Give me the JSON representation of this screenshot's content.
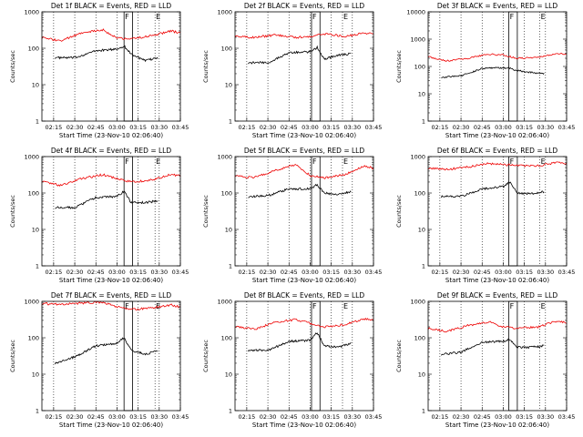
{
  "chart_data": [
    {
      "type": "line",
      "title": "Det 1f BLACK = Events, RED = LLD",
      "xlabel": "Start Time (23-Nov-10 02:06:40)",
      "ylabel": "Counts/sec",
      "xticks": [
        "02:15",
        "02:30",
        "02:45",
        "03:00",
        "03:15",
        "03:30",
        "03:45"
      ],
      "yticks": [
        "1",
        "10",
        "100",
        "1000"
      ],
      "ylim": [
        1,
        1000
      ],
      "yscale": "log",
      "xlim": [
        "02:06:40",
        "03:45"
      ],
      "markers": [
        {
          "label": "F",
          "start": "03:05",
          "end": "03:11"
        },
        {
          "label": "E",
          "start": "03:27",
          "end": "03:27"
        }
      ],
      "series": [
        {
          "name": "Events",
          "color": "#000000",
          "x": [
            "02:16",
            "02:30",
            "02:45",
            "03:00",
            "03:05",
            "03:10",
            "03:20",
            "03:29"
          ],
          "y": [
            55,
            55,
            85,
            95,
            115,
            70,
            45,
            55
          ]
        },
        {
          "name": "LLD",
          "color": "#ee0000",
          "x": [
            "02:06:40",
            "02:20",
            "02:35",
            "02:50",
            "03:00",
            "03:10",
            "03:25",
            "03:38",
            "03:45"
          ],
          "y": [
            195,
            160,
            260,
            320,
            190,
            180,
            220,
            300,
            260
          ]
        }
      ]
    },
    {
      "type": "line",
      "title": "Det 2f BLACK = Events, RED = LLD",
      "xlabel": "Start Time (23-Nov-10 02:06:40)",
      "ylabel": "Counts/sec",
      "xticks": [
        "02:15",
        "02:30",
        "02:45",
        "03:00",
        "03:15",
        "03:30",
        "03:45"
      ],
      "yticks": [
        "1",
        "10",
        "100",
        "1000"
      ],
      "ylim": [
        1,
        1000
      ],
      "yscale": "log",
      "xlim": [
        "02:06:40",
        "03:45"
      ],
      "markers": [
        {
          "label": "F",
          "start": "03:01",
          "end": "03:07"
        },
        {
          "label": "E",
          "start": "03:23",
          "end": "03:23"
        }
      ],
      "series": [
        {
          "name": "Events",
          "color": "#000000",
          "x": [
            "02:16",
            "02:30",
            "02:45",
            "03:00",
            "03:05",
            "03:10",
            "03:20",
            "03:29"
          ],
          "y": [
            40,
            40,
            75,
            80,
            105,
            50,
            65,
            70
          ]
        },
        {
          "name": "LLD",
          "color": "#ee0000",
          "x": [
            "02:06:40",
            "02:20",
            "02:35",
            "02:50",
            "03:00",
            "03:10",
            "03:25",
            "03:38",
            "03:45"
          ],
          "y": [
            210,
            200,
            230,
            200,
            210,
            250,
            210,
            260,
            260
          ]
        }
      ]
    },
    {
      "type": "line",
      "title": "Det 3f BLACK = Events, RED = LLD",
      "xlabel": "Start Time (23-Nov-10 02:06:40)",
      "ylabel": "Counts/sec",
      "xticks": [
        "02:15",
        "02:30",
        "02:45",
        "03:00",
        "03:15",
        "03:30",
        "03:45"
      ],
      "yticks": [
        "1",
        "10",
        "100",
        "1000",
        "10000"
      ],
      "ylim": [
        1,
        10000
      ],
      "yscale": "log",
      "xlim": [
        "02:06:40",
        "03:45"
      ],
      "markers": [
        {
          "label": "F",
          "start": "03:04",
          "end": "03:10"
        },
        {
          "label": "E",
          "start": "03:26",
          "end": "03:26"
        }
      ],
      "series": [
        {
          "name": "Events",
          "color": "#000000",
          "x": [
            "02:16",
            "02:30",
            "02:45",
            "03:00",
            "03:05",
            "03:10",
            "03:20",
            "03:29"
          ],
          "y": [
            40,
            45,
            85,
            90,
            85,
            70,
            60,
            55
          ]
        },
        {
          "name": "LLD",
          "color": "#ee0000",
          "x": [
            "02:06:40",
            "02:20",
            "02:35",
            "02:50",
            "03:00",
            "03:10",
            "03:25",
            "03:38",
            "03:45"
          ],
          "y": [
            230,
            160,
            200,
            280,
            260,
            200,
            210,
            300,
            290
          ]
        }
      ]
    },
    {
      "type": "line",
      "title": "Det 4f BLACK = Events, RED = LLD",
      "xlabel": "Start Time (23-Nov-10 02:06:40)",
      "ylabel": "Counts/sec",
      "xticks": [
        "02:15",
        "02:30",
        "02:45",
        "03:00",
        "03:15",
        "03:30",
        "03:45"
      ],
      "yticks": [
        "1",
        "10",
        "100",
        "1000"
      ],
      "ylim": [
        1,
        1000
      ],
      "yscale": "log",
      "xlim": [
        "02:06:40",
        "03:45"
      ],
      "markers": [
        {
          "label": "F",
          "start": "03:05",
          "end": "03:11"
        },
        {
          "label": "E",
          "start": "03:27",
          "end": "03:27"
        }
      ],
      "series": [
        {
          "name": "Events",
          "color": "#000000",
          "x": [
            "02:16",
            "02:30",
            "02:45",
            "03:00",
            "03:05",
            "03:10",
            "03:20",
            "03:29"
          ],
          "y": [
            40,
            40,
            75,
            80,
            110,
            55,
            55,
            60
          ]
        },
        {
          "name": "LLD",
          "color": "#ee0000",
          "x": [
            "02:06:40",
            "02:20",
            "02:35",
            "02:50",
            "03:00",
            "03:10",
            "03:25",
            "03:38",
            "03:45"
          ],
          "y": [
            210,
            160,
            250,
            320,
            250,
            200,
            230,
            320,
            300
          ]
        }
      ]
    },
    {
      "type": "line",
      "title": "Det 5f BLACK = Events, RED = LLD",
      "xlabel": "Start Time (23-Nov-10 02:06:40)",
      "ylabel": "Counts/sec",
      "xticks": [
        "02:15",
        "02:30",
        "02:45",
        "03:00",
        "03:15",
        "03:30",
        "03:45"
      ],
      "yticks": [
        "1",
        "10",
        "100",
        "1000"
      ],
      "ylim": [
        1,
        1000
      ],
      "yscale": "log",
      "xlim": [
        "02:06:40",
        "03:45"
      ],
      "markers": [
        {
          "label": "F",
          "start": "03:01",
          "end": "03:07"
        },
        {
          "label": "E",
          "start": "03:23",
          "end": "03:23"
        }
      ],
      "series": [
        {
          "name": "Events",
          "color": "#000000",
          "x": [
            "02:16",
            "02:30",
            "02:45",
            "03:00",
            "03:05",
            "03:10",
            "03:20",
            "03:29"
          ],
          "y": [
            80,
            85,
            130,
            130,
            170,
            100,
            90,
            110
          ]
        },
        {
          "name": "LLD",
          "color": "#ee0000",
          "x": [
            "02:06:40",
            "02:20",
            "02:35",
            "02:50",
            "03:00",
            "03:10",
            "03:25",
            "03:38",
            "03:45"
          ],
          "y": [
            300,
            260,
            420,
            600,
            300,
            260,
            320,
            560,
            480
          ]
        }
      ]
    },
    {
      "type": "line",
      "title": "Det 6f BLACK = Events, RED = LLD",
      "xlabel": "Start Time (23-Nov-10 02:06:40)",
      "ylabel": "Counts/sec",
      "xticks": [
        "02:15",
        "02:30",
        "02:45",
        "03:00",
        "03:15",
        "03:30",
        "03:45"
      ],
      "yticks": [
        "1",
        "10",
        "100",
        "1000"
      ],
      "ylim": [
        1,
        1000
      ],
      "yscale": "log",
      "xlim": [
        "02:06:40",
        "03:45"
      ],
      "markers": [
        {
          "label": "F",
          "start": "03:04",
          "end": "03:10"
        },
        {
          "label": "E",
          "start": "03:26",
          "end": "03:26"
        }
      ],
      "series": [
        {
          "name": "Events",
          "color": "#000000",
          "x": [
            "02:16",
            "02:30",
            "02:45",
            "03:00",
            "03:05",
            "03:10",
            "03:20",
            "03:29"
          ],
          "y": [
            80,
            80,
            130,
            150,
            200,
            100,
            95,
            110
          ]
        },
        {
          "name": "LLD",
          "color": "#ee0000",
          "x": [
            "02:06:40",
            "02:20",
            "02:35",
            "02:50",
            "03:00",
            "03:10",
            "03:25",
            "03:38",
            "03:45"
          ],
          "y": [
            480,
            440,
            520,
            650,
            600,
            560,
            560,
            680,
            640
          ]
        }
      ]
    },
    {
      "type": "line",
      "title": "Det 7f BLACK = Events, RED = LLD",
      "xlabel": "Start Time (23-Nov-10 02:06:40)",
      "ylabel": "Counts/sec",
      "xticks": [
        "02:15",
        "02:30",
        "02:45",
        "03:00",
        "03:15",
        "03:30",
        "03:45"
      ],
      "yticks": [
        "1",
        "10",
        "100",
        "1000"
      ],
      "ylim": [
        1,
        1000
      ],
      "yscale": "log",
      "xlim": [
        "02:06:40",
        "03:45"
      ],
      "markers": [
        {
          "label": "F",
          "start": "03:05",
          "end": "03:11"
        },
        {
          "label": "E",
          "start": "03:27",
          "end": "03:27"
        }
      ],
      "series": [
        {
          "name": "Events",
          "color": "#000000",
          "x": [
            "02:16",
            "02:30",
            "02:45",
            "03:00",
            "03:05",
            "03:10",
            "03:20",
            "03:29"
          ],
          "y": [
            20,
            30,
            60,
            70,
            100,
            45,
            35,
            45
          ]
        },
        {
          "name": "LLD",
          "color": "#ee0000",
          "x": [
            "02:06:40",
            "02:20",
            "02:35",
            "02:50",
            "03:00",
            "03:10",
            "03:25",
            "03:38",
            "03:45"
          ],
          "y": [
            880,
            820,
            900,
            950,
            700,
            600,
            650,
            800,
            700
          ]
        }
      ]
    },
    {
      "type": "line",
      "title": "Det 8f BLACK = Events, RED = LLD",
      "xlabel": "Start Time (23-Nov-10 02:06:40)",
      "ylabel": "Counts/sec",
      "xticks": [
        "02:15",
        "02:30",
        "02:45",
        "03:00",
        "03:15",
        "03:30",
        "03:45"
      ],
      "yticks": [
        "1",
        "10",
        "100",
        "1000"
      ],
      "ylim": [
        1,
        1000
      ],
      "yscale": "log",
      "xlim": [
        "02:06:40",
        "03:45"
      ],
      "markers": [
        {
          "label": "F",
          "start": "03:01",
          "end": "03:07"
        },
        {
          "label": "E",
          "start": "03:23",
          "end": "03:23"
        }
      ],
      "series": [
        {
          "name": "Events",
          "color": "#000000",
          "x": [
            "02:16",
            "02:30",
            "02:45",
            "03:00",
            "03:05",
            "03:10",
            "03:20",
            "03:29"
          ],
          "y": [
            45,
            45,
            80,
            85,
            140,
            60,
            55,
            70
          ]
        },
        {
          "name": "LLD",
          "color": "#ee0000",
          "x": [
            "02:06:40",
            "02:20",
            "02:35",
            "02:50",
            "03:00",
            "03:10",
            "03:25",
            "03:38",
            "03:45"
          ],
          "y": [
            210,
            170,
            260,
            320,
            250,
            200,
            230,
            330,
            300
          ]
        }
      ]
    },
    {
      "type": "line",
      "title": "Det 9f BLACK = Events, RED = LLD",
      "xlabel": "Start Time (23-Nov-10 02:06:40)",
      "ylabel": "Counts/sec",
      "xticks": [
        "02:15",
        "02:30",
        "02:45",
        "03:00",
        "03:15",
        "03:30",
        "03:45"
      ],
      "yticks": [
        "1",
        "10",
        "100",
        "1000"
      ],
      "ylim": [
        1,
        1000
      ],
      "yscale": "log",
      "xlim": [
        "02:06:40",
        "03:45"
      ],
      "markers": [
        {
          "label": "F",
          "start": "03:04",
          "end": "03:10"
        },
        {
          "label": "E",
          "start": "03:26",
          "end": "03:26"
        }
      ],
      "series": [
        {
          "name": "Events",
          "color": "#000000",
          "x": [
            "02:16",
            "02:30",
            "02:45",
            "03:00",
            "03:05",
            "03:10",
            "03:20",
            "03:29"
          ],
          "y": [
            35,
            40,
            75,
            80,
            90,
            55,
            55,
            60
          ]
        },
        {
          "name": "LLD",
          "color": "#ee0000",
          "x": [
            "02:06:40",
            "02:20",
            "02:35",
            "02:50",
            "03:00",
            "03:10",
            "03:25",
            "03:38",
            "03:45"
          ],
          "y": [
            180,
            150,
            220,
            270,
            200,
            180,
            200,
            290,
            260
          ]
        }
      ]
    }
  ]
}
